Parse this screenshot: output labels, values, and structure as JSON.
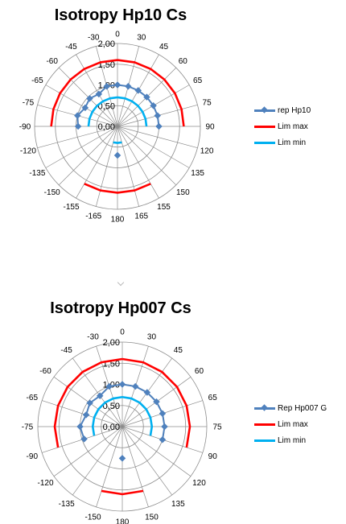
{
  "chart_data": [
    {
      "type": "polar-line",
      "title": "Isotropy Hp10 Cs",
      "angle_labels": [
        "0",
        "30",
        "45",
        "60",
        "65",
        "75",
        "90",
        "120",
        "135",
        "150",
        "155",
        "165",
        "180",
        "-165",
        "-155",
        "-150",
        "-135",
        "-120",
        "-90",
        "-75",
        "-65",
        "-60",
        "-45",
        "-30"
      ],
      "radial_ticks": [
        "0,00",
        "0,50",
        "1,00",
        "1,50",
        "2,00"
      ],
      "rlim": [
        0,
        2
      ],
      "grid": true,
      "legend_position": "right",
      "series": [
        {
          "name": "rep Hp10",
          "color": "#4F81BD",
          "marker": "diamond",
          "values": [
            1.0,
            1.0,
            1.0,
            1.0,
            1.0,
            1.0,
            1.0,
            null,
            null,
            null,
            null,
            null,
            0.7,
            null,
            null,
            null,
            null,
            null,
            0.95,
            1.0,
            0.9,
            0.95,
            0.9,
            1.0
          ]
        },
        {
          "name": "Lim max",
          "color": "#FF0000",
          "values": [
            1.6,
            1.6,
            1.6,
            1.6,
            1.6,
            1.6,
            1.6,
            null,
            null,
            null,
            1.6,
            1.6,
            1.6,
            1.6,
            1.6,
            null,
            null,
            null,
            1.6,
            1.6,
            1.6,
            1.6,
            1.6,
            1.6
          ]
        },
        {
          "name": "Lim min",
          "color": "#00B0F0",
          "values": [
            0.7,
            0.7,
            0.7,
            0.7,
            0.7,
            0.7,
            0.7,
            null,
            null,
            null,
            null,
            0.4,
            0.4,
            0.4,
            null,
            null,
            null,
            null,
            0.7,
            0.7,
            0.7,
            0.7,
            0.7,
            0.7
          ]
        }
      ]
    },
    {
      "type": "polar-line",
      "title": "Isotropy Hp007 Cs",
      "angle_labels": [
        "0",
        "30",
        "45",
        "60",
        "65",
        "75",
        "90",
        "120",
        "135",
        "150",
        "180",
        "-150",
        "-135",
        "-120",
        "-90",
        "-75",
        "-65",
        "-60",
        "-45",
        "-30"
      ],
      "radial_ticks": [
        "0,00",
        "0,50",
        "1,00",
        "1,50",
        "2,00"
      ],
      "rlim": [
        0,
        2
      ],
      "grid": true,
      "legend_position": "right",
      "series": [
        {
          "name": "Rep Hp007 G",
          "color": "#4F81BD",
          "marker": "diamond",
          "values": [
            1.0,
            1.0,
            1.0,
            1.0,
            1.0,
            1.0,
            1.0,
            null,
            null,
            null,
            0.75,
            null,
            null,
            null,
            0.95,
            1.0,
            0.9,
            0.95,
            0.9,
            1.0
          ]
        },
        {
          "name": "Lim max",
          "color": "#FF0000",
          "values": [
            1.6,
            1.6,
            1.6,
            1.6,
            1.6,
            1.6,
            1.6,
            null,
            null,
            1.6,
            1.6,
            1.6,
            null,
            null,
            1.6,
            1.6,
            1.6,
            1.6,
            1.6,
            1.6
          ]
        },
        {
          "name": "Lim min",
          "color": "#00B0F0",
          "values": [
            0.7,
            0.7,
            0.7,
            0.7,
            0.7,
            0.7,
            0.7,
            null,
            null,
            null,
            0.4,
            null,
            null,
            null,
            0.7,
            0.7,
            0.7,
            0.7,
            0.7,
            0.7
          ]
        }
      ]
    }
  ]
}
